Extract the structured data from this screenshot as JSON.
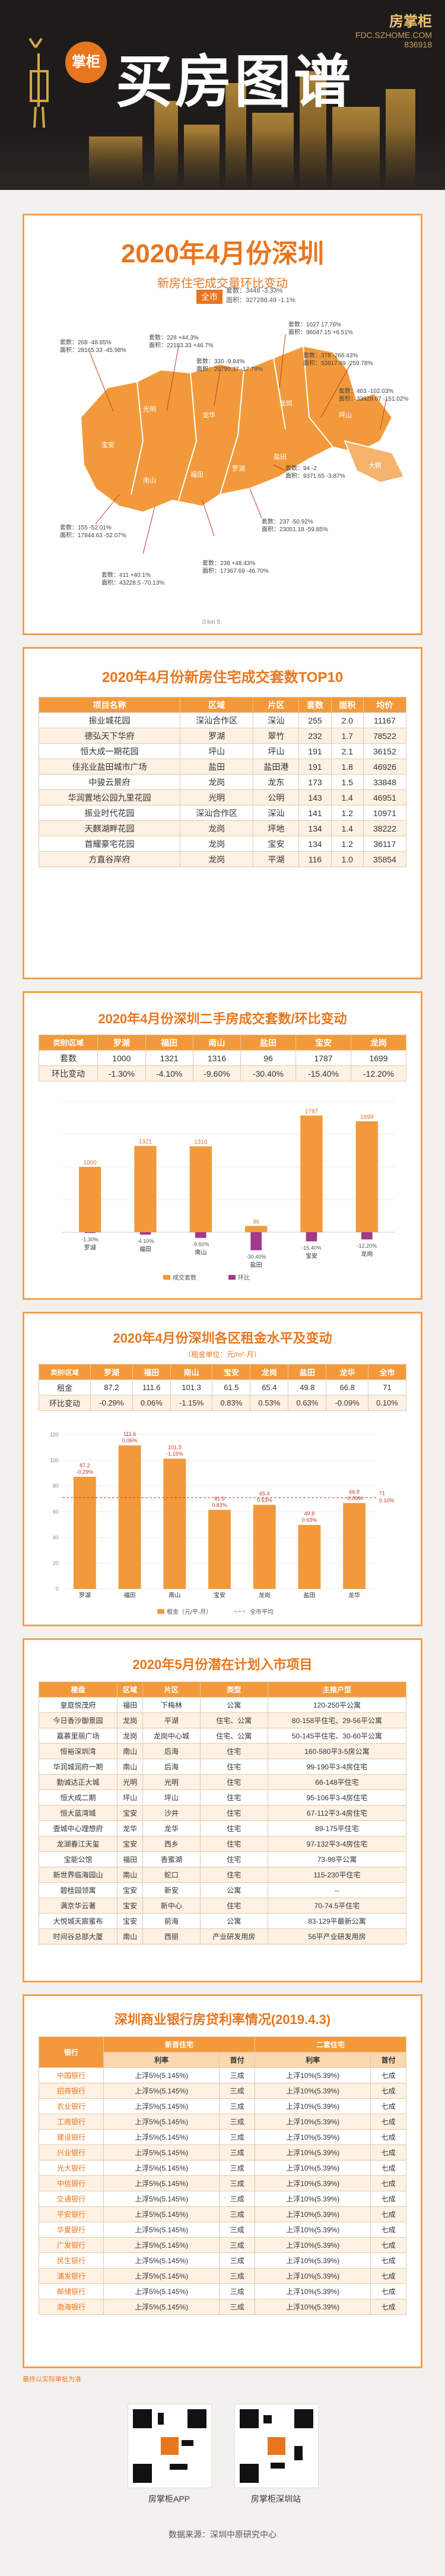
{
  "header": {
    "logo_text": "掌柜",
    "main_title": "买房图谱",
    "brand_name": "房掌柜",
    "brand_tag": "房掌柜",
    "brand_sub": "FDC.SZHOME.COM",
    "brand_code": "836918"
  },
  "map_section": {
    "title": "2020年4月份深圳",
    "subtitle": "新房住宅成交量环比变动",
    "badge": "全市",
    "city_note": "套数：3448 -3.33%\n面积：327288.49 -1.1%",
    "callouts": [
      {
        "text": "套数：268 -48.85%\n面积：28165.33 -45.98%"
      },
      {
        "text": "套数：228 +44.3%\n面积：22183.33 +46.7%"
      },
      {
        "text": "套数：330 -9.84%\n面积：29790.37 -17.78%"
      },
      {
        "text": "套数：1027 17.76%\n面积：96047.15 +6.51%"
      },
      {
        "text": "套数：378 -266.43%\n面积：53817.89 -259.78%"
      },
      {
        "text": "套数：403 -102.03%\n面积：33929.07 -151.02%"
      },
      {
        "text": "套数：94 -2\n面积：9371.65 -3.87%"
      },
      {
        "text": "套数：237 -50.92%\n面积：23051.18 -59.85%"
      },
      {
        "text": "套数：155 -52.01%\n面积：17844.63 -52.07%"
      },
      {
        "text": "套数：238 +48.43%\n面积：17367.69 -46.70%"
      },
      {
        "text": "套数：411 +40.1%\n面积：43228.5 -70.13%"
      }
    ],
    "districts": [
      "宝安",
      "光明",
      "龙华",
      "龙岗",
      "坪山",
      "大鹏",
      "南山",
      "福田",
      "罗湖",
      "盐田"
    ],
    "scale_label": "0 km 5"
  },
  "top10": {
    "title": "2020年4月份新房住宅成交套数TOP10",
    "headers": [
      "项目名称",
      "区域",
      "片区",
      "套数",
      "面积",
      "均价"
    ],
    "rows": [
      [
        "振业城花园",
        "深汕合作区",
        "深汕",
        "255",
        "2.0",
        "11167"
      ],
      [
        "德弘天下华府",
        "罗湖",
        "翠竹",
        "232",
        "1.7",
        "78522"
      ],
      [
        "恒大成一期花园",
        "坪山",
        "坪山",
        "191",
        "2.1",
        "36152"
      ],
      [
        "佳兆业盐田城市广场",
        "盐田",
        "盐田港",
        "191",
        "1.8",
        "46926"
      ],
      [
        "中骏云景府",
        "龙岗",
        "龙东",
        "173",
        "1.5",
        "33848"
      ],
      [
        "华润置地公园九里花园",
        "光明",
        "公明",
        "143",
        "1.4",
        "46951"
      ],
      [
        "振业时代花园",
        "深汕合作区",
        "深汕",
        "141",
        "1.2",
        "10971"
      ],
      [
        "天麒湖畔花园",
        "龙岗",
        "坪地",
        "134",
        "1.4",
        "38222"
      ],
      [
        "首耀豪宅花园",
        "龙岗",
        "宝安",
        "134",
        "1.2",
        "36117"
      ],
      [
        "方直谷岸府",
        "龙岗",
        "平湖",
        "116",
        "1.0",
        "35854"
      ]
    ]
  },
  "second_hand": {
    "title": "2020年4月份深圳二手房成交套数/环比变动",
    "col_head": "类别\\区域",
    "districts": [
      "罗湖",
      "福田",
      "南山",
      "盐田",
      "宝安",
      "龙岗"
    ],
    "row1_label": "套数",
    "row1": [
      "1000",
      "1321",
      "1316",
      "96",
      "1787",
      "1699"
    ],
    "row2_label": "环比变动",
    "row2": [
      "-1.30%",
      "-4.10%",
      "-9.60%",
      "-30.40%",
      "-15.40%",
      "-12.20%"
    ],
    "legend_bar": "成交套数",
    "legend_line": "环比"
  },
  "rent": {
    "title": "2020年4月份深圳各区租金水平及变动",
    "unit_note": "（租金单位：元/m²·月）",
    "col_head": "类别\\区域",
    "districts": [
      "罗湖",
      "福田",
      "南山",
      "宝安",
      "龙岗",
      "盐田",
      "龙华",
      "全市"
    ],
    "row1_label": "租金",
    "row1": [
      "87.2",
      "111.6",
      "101.3",
      "61.5",
      "65.4",
      "49.8",
      "66.8",
      "71"
    ],
    "row2_label": "环比变动",
    "row2": [
      "-0.29%",
      "0.06%",
      "-1.15%",
      "0.83%",
      "0.53%",
      "0.63%",
      "-0.09%",
      "0.10%"
    ],
    "chart_labels": [
      "87.2\n-0.29%",
      "111.6\n0.06%",
      "101.3\n-1.15%",
      "61.5\n0.83%",
      "65.4\n0.53%",
      "49.8\n0.63%",
      "66.8\n-0.09%"
    ],
    "city_line_label": "71\n0.10%",
    "legend_bar": "租金（元/平·月）",
    "legend_line": "全市平均"
  },
  "projects": {
    "title": "2020年5月份潜在计划入市项目",
    "headers": [
      "楼盘",
      "区域",
      "片区",
      "类型",
      "主推户型"
    ],
    "rows": [
      [
        "皇庭悦茂府",
        "福田",
        "下梅林",
        "公寓",
        "120-250平公寓"
      ],
      [
        "今日香沙御景园",
        "龙岗",
        "平湖",
        "住宅、公寓",
        "80-158平住宅、29-56平公寓"
      ],
      [
        "嘉慕里丽广场",
        "龙岗",
        "龙岗中心城",
        "住宅、公寓",
        "50-145平住宅、30-60平公寓"
      ],
      [
        "恒裕深圳湾",
        "南山",
        "后海",
        "住宅",
        "160-580平3-5房公寓"
      ],
      [
        "华润城润府一期",
        "南山",
        "后海",
        "住宅",
        "99-190平3-4房住宅"
      ],
      [
        "勤诚达正大城",
        "光明",
        "光明",
        "住宅",
        "66-148平住宅"
      ],
      [
        "恒大成二期",
        "坪山",
        "坪山",
        "住宅",
        "95-106平3-4房住宅"
      ],
      [
        "恒大蓝湾城",
        "宝安",
        "沙井",
        "住宅",
        "67-112平3-4房住宅"
      ],
      [
        "壹城中心理想府",
        "龙华",
        "龙华",
        "住宅",
        "89-175平住宅"
      ],
      [
        "龙湖春江天玺",
        "宝安",
        "西乡",
        "住宅",
        "97-132平3-4房住宅"
      ],
      [
        "宝能公馆",
        "福田",
        "香蜜湖",
        "住宅",
        "73-98平公寓"
      ],
      [
        "新世界临海园山",
        "南山",
        "蛇口",
        "住宅",
        "115-230平住宅"
      ],
      [
        "碧桂园领寓",
        "宝安",
        "新安",
        "公寓",
        "--"
      ],
      [
        "满京华云著",
        "宝安",
        "新中心",
        "住宅",
        "70-74.5平住宅"
      ],
      [
        "大悦城天宸蜜布",
        "宝安",
        "前海",
        "公寓",
        "83-129平最新公寓"
      ],
      [
        "时间谷总部大厦",
        "南山",
        "西丽",
        "产业研发用房",
        "56平产业研发用房"
      ]
    ]
  },
  "mortgage": {
    "title": "深圳商业银行房贷利率情况(2019.4.3)",
    "bank_head": "银行",
    "group1": "新首住宅",
    "group2": "二套住宅",
    "sub1": "利率",
    "sub2": "首付",
    "rows": [
      [
        "中国银行",
        "上浮5%(5.145%)",
        "三成",
        "上浮10%(5.39%)",
        "七成"
      ],
      [
        "招商银行",
        "上浮5%(5.145%)",
        "三成",
        "上浮10%(5.39%)",
        "七成"
      ],
      [
        "农业银行",
        "上浮5%(5.145%)",
        "三成",
        "上浮10%(5.39%)",
        "七成"
      ],
      [
        "工商银行",
        "上浮5%(5.145%)",
        "三成",
        "上浮10%(5.39%)",
        "七成"
      ],
      [
        "建设银行",
        "上浮5%(5.145%)",
        "三成",
        "上浮10%(5.39%)",
        "七成"
      ],
      [
        "兴业银行",
        "上浮5%(5.145%)",
        "三成",
        "上浮10%(5.39%)",
        "七成"
      ],
      [
        "光大银行",
        "上浮5%(5.145%)",
        "三成",
        "上浮10%(5.39%)",
        "七成"
      ],
      [
        "中信银行",
        "上浮5%(5.145%)",
        "三成",
        "上浮10%(5.39%)",
        "七成"
      ],
      [
        "交通银行",
        "上浮5%(5.145%)",
        "三成",
        "上浮10%(5.39%)",
        "七成"
      ],
      [
        "平安银行",
        "上浮5%(5.145%)",
        "三成",
        "上浮10%(5.39%)",
        "七成"
      ],
      [
        "华夏银行",
        "上浮5%(5.145%)",
        "三成",
        "上浮10%(5.39%)",
        "七成"
      ],
      [
        "广发银行",
        "上浮5%(5.145%)",
        "三成",
        "上浮10%(5.39%)",
        "七成"
      ],
      [
        "民生银行",
        "上浮5%(5.145%)",
        "三成",
        "上浮10%(5.39%)",
        "七成"
      ],
      [
        "浦发银行",
        "上浮5%(5.145%)",
        "三成",
        "上浮10%(5.39%)",
        "七成"
      ],
      [
        "邮储银行",
        "上浮5%(5.145%)",
        "三成",
        "上浮10%(5.39%)",
        "七成"
      ],
      [
        "渤海银行",
        "上浮5%(5.145%)",
        "三成",
        "上浮10%(5.39%)",
        "七成"
      ]
    ],
    "footnote": "最终以实际审批为准"
  },
  "footer": {
    "qr1_label": "房掌柜APP",
    "qr2_label": "房掌柜深圳站",
    "source": "数据来源：深圳中原研究中心"
  },
  "chart_data": [
    {
      "type": "bar",
      "title": "2020年4月份深圳二手房成交套数/环比变动",
      "categories": [
        "罗湖",
        "福田",
        "南山",
        "盐田",
        "宝安",
        "龙岗"
      ],
      "series": [
        {
          "name": "成交套数",
          "values": [
            1000,
            1321,
            1316,
            96,
            1787,
            1699
          ]
        },
        {
          "name": "环比",
          "values": [
            -1.3,
            -4.1,
            -9.6,
            -30.4,
            -15.4,
            -12.2
          ]
        }
      ],
      "ylim": [
        0,
        2000
      ]
    },
    {
      "type": "bar",
      "title": "2020年4月份深圳各区租金水平及变动",
      "categories": [
        "罗湖",
        "福田",
        "南山",
        "宝安",
        "龙岗",
        "盐田",
        "龙华"
      ],
      "series": [
        {
          "name": "租金（元/平·月）",
          "values": [
            87.2,
            111.6,
            101.3,
            61.5,
            65.4,
            49.8,
            66.8
          ]
        },
        {
          "name": "全市平均",
          "values": [
            71,
            71,
            71,
            71,
            71,
            71,
            71
          ]
        }
      ],
      "ylim": [
        0,
        120
      ]
    }
  ]
}
